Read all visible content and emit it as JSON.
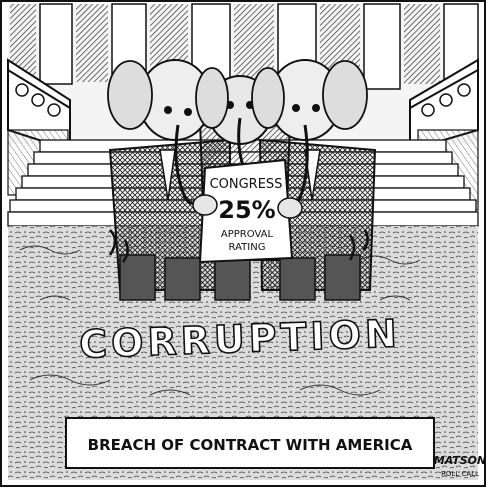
{
  "cartoon": {
    "sign": {
      "line1": "CONGRESS",
      "line2": "25%",
      "line3": "APPROVAL",
      "line4": "RATING"
    },
    "ground_word": "CORRUPTION",
    "caption": "BREACH OF CONTRACT WITH AMERICA",
    "signature": "MATSON",
    "signature_sub": "ROLL CALL"
  },
  "colors": {
    "ink": "#111111",
    "paper": "#ffffff",
    "hatch_gray": "#8a8a8a"
  }
}
